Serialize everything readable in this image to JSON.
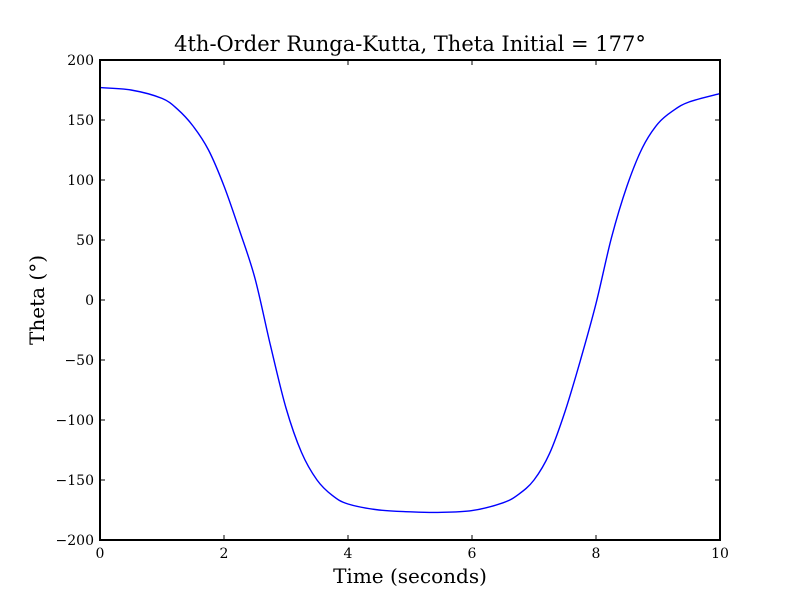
{
  "chart_data": {
    "type": "line",
    "title": "4th-Order Runga-Kutta, Theta Initial = 177°",
    "xlabel": "Time (seconds)",
    "ylabel": "Theta (°)",
    "xlim": [
      0,
      10
    ],
    "ylim": [
      -200,
      200
    ],
    "xticks": [
      0,
      2,
      4,
      6,
      8,
      10
    ],
    "yticks": [
      -200,
      -150,
      -100,
      -50,
      0,
      50,
      100,
      150,
      200
    ],
    "xtick_labels": [
      "0",
      "2",
      "4",
      "6",
      "8",
      "10"
    ],
    "ytick_labels": [
      "−200",
      "−150",
      "−100",
      "−50",
      "0",
      "50",
      "100",
      "150",
      "200"
    ],
    "grid": false,
    "series": [
      {
        "color": "#0000ff",
        "x": [
          0,
          0.5,
          1.0,
          1.25,
          1.5,
          1.75,
          2.0,
          2.25,
          2.5,
          2.75,
          3.0,
          3.25,
          3.5,
          3.75,
          4.0,
          4.5,
          5.0,
          5.45,
          6.0,
          6.5,
          6.75,
          7.0,
          7.25,
          7.5,
          7.75,
          8.0,
          8.25,
          8.5,
          8.75,
          9.0,
          9.25,
          9.5,
          10.0
        ],
        "y": [
          177,
          175,
          168,
          159,
          145,
          125,
          95,
          58,
          18,
          -38,
          -90,
          -127,
          -150,
          -163,
          -170,
          -175,
          -176.5,
          -177,
          -175.5,
          -169,
          -162,
          -150,
          -128,
          -93,
          -50,
          -3,
          52,
          95,
          127,
          147,
          158,
          165,
          172
        ]
      }
    ]
  }
}
